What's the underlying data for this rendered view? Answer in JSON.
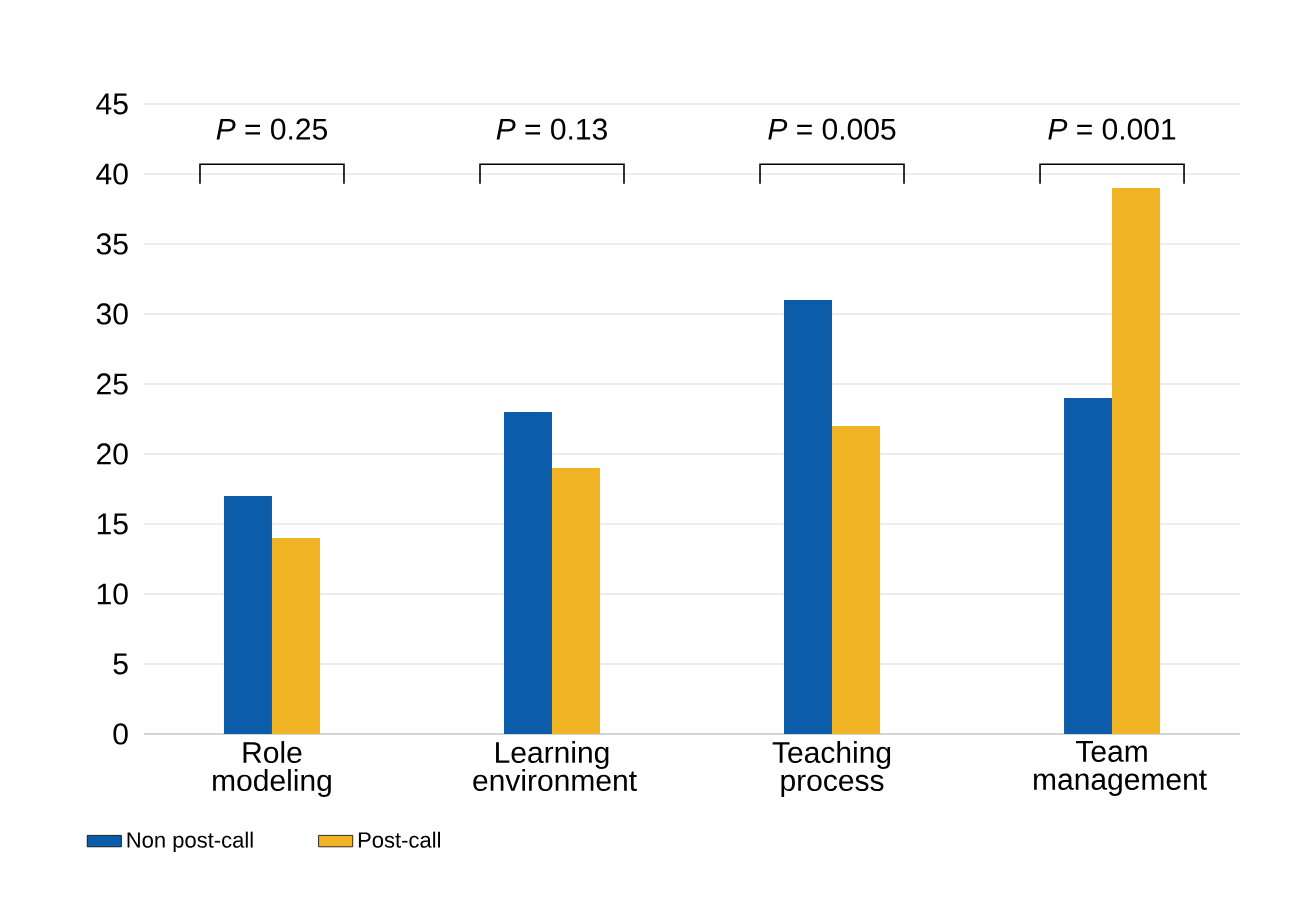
{
  "chart_data": {
    "type": "bar",
    "categories": [
      "Role modeling",
      "Learning environment",
      "Teaching process",
      "Team management"
    ],
    "series": [
      {
        "name": "Non post-call",
        "color": "#0b5ca9",
        "values": [
          17,
          23,
          31,
          24
        ]
      },
      {
        "name": "Post-call",
        "color": "#f0b323",
        "values": [
          14,
          19,
          22,
          39
        ]
      }
    ],
    "ylim": [
      0,
      45
    ],
    "yticks": [
      0,
      5,
      10,
      15,
      20,
      25,
      30,
      35,
      40,
      45
    ],
    "grid": "y",
    "legend": "bottom left",
    "annotations": [
      "*P* = 0.25",
      "*P* = 0.13",
      "*P* = 0.005",
      "*P* = 0.001"
    ]
  }
}
